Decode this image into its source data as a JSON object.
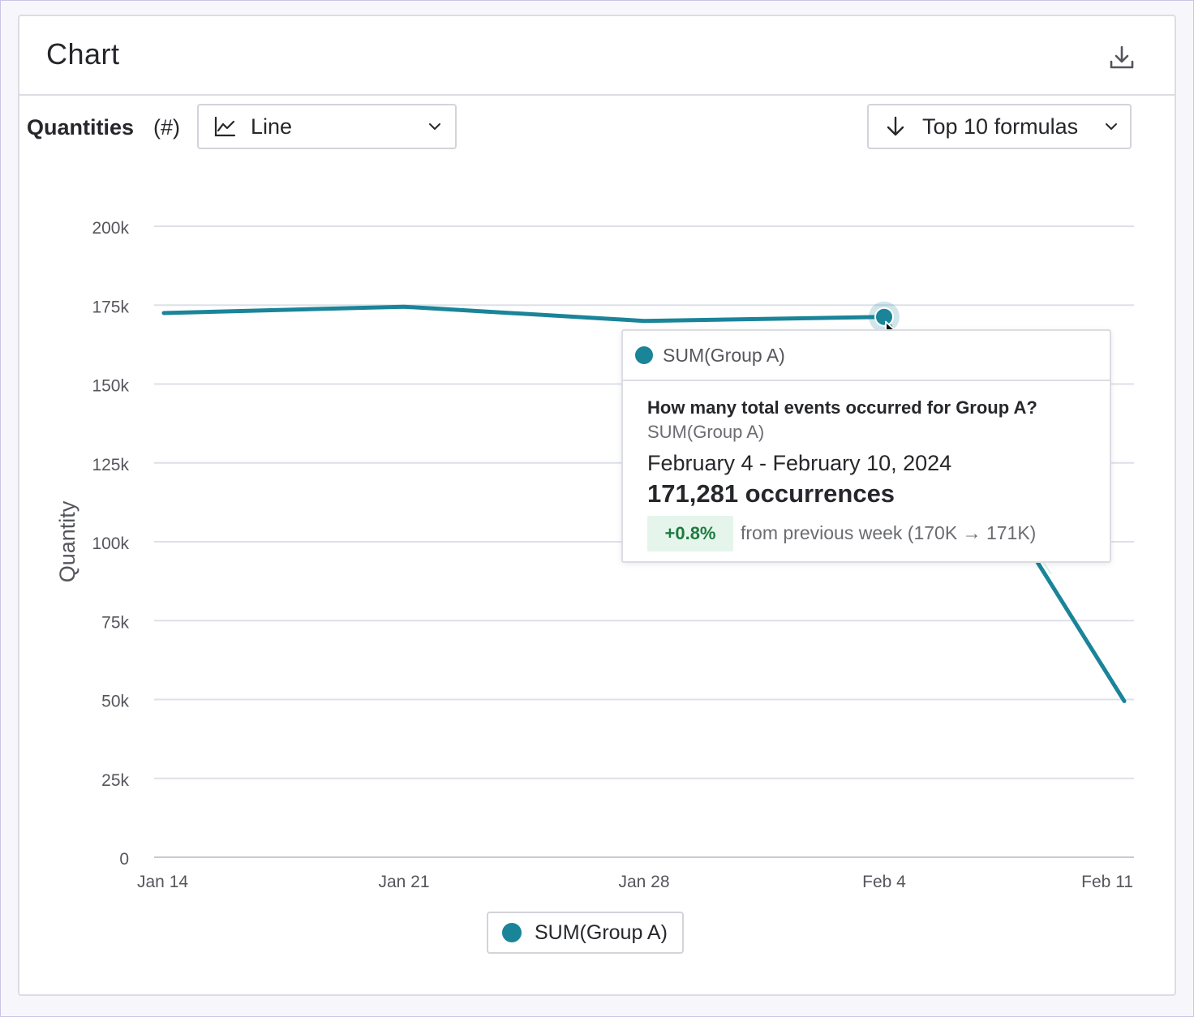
{
  "card": {
    "title": "Chart",
    "download_icon": "download-icon"
  },
  "toolbar": {
    "label": "Quantities",
    "unit": "(#)",
    "chart_type": {
      "icon": "line-chart-icon",
      "value": "Line"
    },
    "sort": {
      "icon": "arrow-down-icon",
      "value": "Top 10 formulas"
    }
  },
  "chart_data": {
    "type": "line",
    "x": [
      "Jan 14",
      "Jan 21",
      "Jan 28",
      "Feb 4",
      "Feb 11"
    ],
    "ylabel": "Quantity",
    "xlabel": "",
    "ylim": [
      0,
      200000
    ],
    "yticks": [
      0,
      25000,
      50000,
      75000,
      100000,
      125000,
      150000,
      175000,
      200000
    ],
    "ytick_labels": [
      "0",
      "25k",
      "50k",
      "75k",
      "100k",
      "125k",
      "150k",
      "175k",
      "200k"
    ],
    "grid": true,
    "series": [
      {
        "name": "SUM(Group A)",
        "color": "#1a8499",
        "values": [
          172500,
          174500,
          170000,
          171281,
          49500
        ]
      }
    ],
    "highlight_index": 3
  },
  "legend": {
    "items": [
      {
        "label": "SUM(Group A)",
        "color": "#1a8499"
      }
    ]
  },
  "tooltip": {
    "series": "SUM(Group A)",
    "question": "How many total events occurred for Group A?",
    "formula": "SUM(Group A)",
    "range": "February 4 - February 10, 2024",
    "value": "171,281 occurrences",
    "change": "+0.8%",
    "comparison": "from previous week (170K → 171K)"
  }
}
